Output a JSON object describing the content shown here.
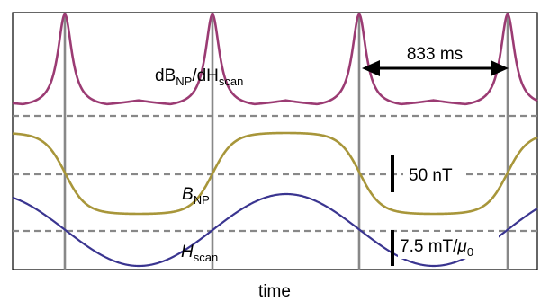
{
  "chart_data": {
    "type": "line",
    "xlabel": "time",
    "period_label": "833 ms",
    "series": [
      {
        "name": "dB_NP/dH_scan",
        "label_main": "dB",
        "label_sub1": "NP",
        "label_mid": "/dH",
        "label_sub2": "scan",
        "color": "#9b3b73",
        "shape": "peaks"
      },
      {
        "name": "B_NP",
        "label_main": "B",
        "label_sub1": "NP",
        "color": "#a8963a",
        "shape": "shifted-sine"
      },
      {
        "name": "H_scan",
        "label_main": "H",
        "label_sub1": "scan",
        "color": "#3a3590",
        "shape": "sine"
      }
    ],
    "scale_bars": [
      {
        "label": "50 nT"
      },
      {
        "label_pre": "7.5 mT/",
        "label_mu": "μ",
        "label_sub": "0"
      }
    ],
    "vertical_markers": 4,
    "colors": {
      "grid_solid": "#888888",
      "grid_dashed": "#888888",
      "frame": "#000000"
    }
  }
}
